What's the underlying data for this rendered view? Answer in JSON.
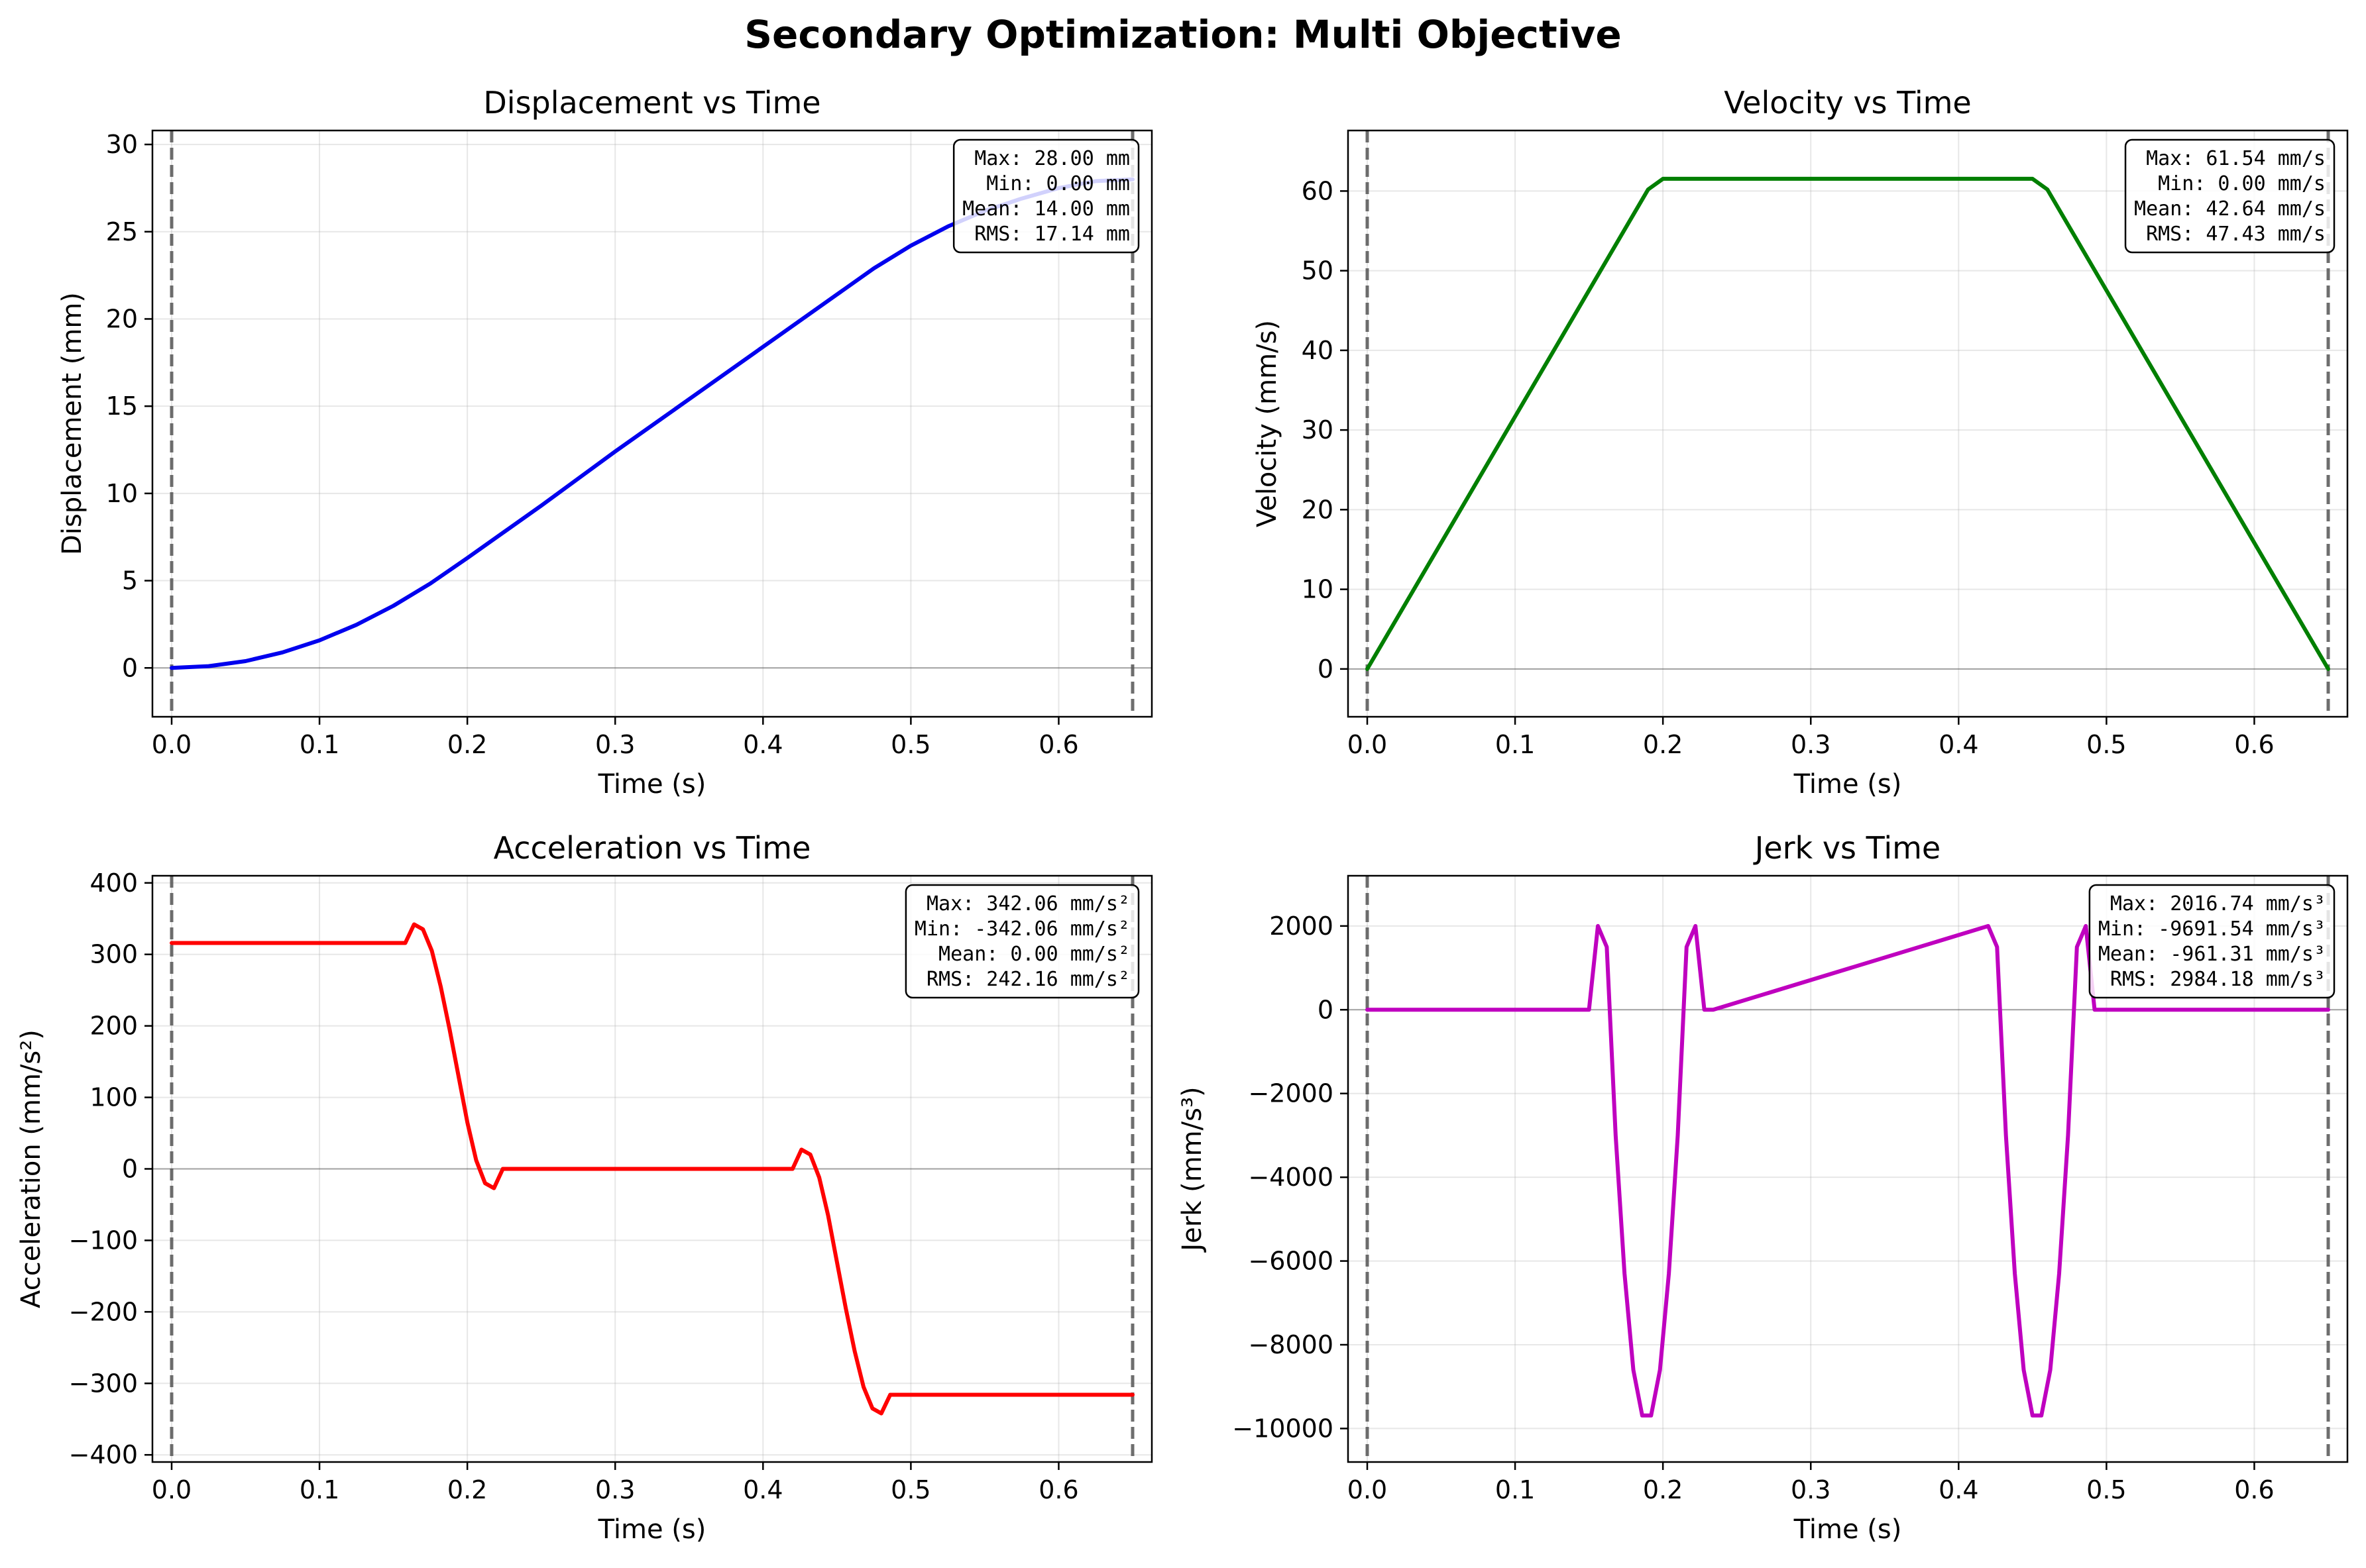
{
  "figure": {
    "title": "Secondary Optimization: Multi Objective"
  },
  "chart_data": [
    {
      "type": "line",
      "title": "Displacement vs Time",
      "xlabel": "Time (s)",
      "ylabel": "Displacement (mm)",
      "xlim": [
        -0.013,
        0.663
      ],
      "ylim": [
        -2.8,
        30.8
      ],
      "xticks": [
        0.0,
        0.1,
        0.2,
        0.3,
        0.4,
        0.5,
        0.6
      ],
      "xtick_labels": [
        "0.0",
        "0.1",
        "0.2",
        "0.3",
        "0.4",
        "0.5",
        "0.6"
      ],
      "yticks": [
        0,
        5,
        10,
        15,
        20,
        25,
        30
      ],
      "ytick_labels": [
        "0",
        "5",
        "10",
        "15",
        "20",
        "25",
        "30"
      ],
      "grid": true,
      "color": "#0000ee",
      "vlines": [
        0.0,
        0.65
      ],
      "stats": [
        "Max: 28.00 mm",
        "Min: 0.00 mm",
        "Mean: 14.00 mm",
        "RMS: 17.14 mm"
      ],
      "x": [
        0.0,
        0.025,
        0.05,
        0.075,
        0.1,
        0.125,
        0.15,
        0.175,
        0.2,
        0.25,
        0.3,
        0.35,
        0.4,
        0.45,
        0.475,
        0.5,
        0.525,
        0.55,
        0.575,
        0.6,
        0.625,
        0.65
      ],
      "y": [
        0.0,
        0.1,
        0.39,
        0.89,
        1.58,
        2.47,
        3.56,
        4.84,
        6.3,
        9.3,
        12.4,
        15.4,
        18.4,
        21.4,
        22.9,
        24.2,
        25.3,
        26.2,
        26.9,
        27.5,
        27.9,
        28.0
      ]
    },
    {
      "type": "line",
      "title": "Velocity vs Time",
      "xlabel": "Time (s)",
      "ylabel": "Velocity (mm/s)",
      "xlim": [
        -0.013,
        0.663
      ],
      "ylim": [
        -6,
        67.6
      ],
      "xticks": [
        0.0,
        0.1,
        0.2,
        0.3,
        0.4,
        0.5,
        0.6
      ],
      "xtick_labels": [
        "0.0",
        "0.1",
        "0.2",
        "0.3",
        "0.4",
        "0.5",
        "0.6"
      ],
      "yticks": [
        0,
        10,
        20,
        30,
        40,
        50,
        60
      ],
      "ytick_labels": [
        "0",
        "10",
        "20",
        "30",
        "40",
        "50",
        "60"
      ],
      "grid": true,
      "color": "#007f00",
      "vlines": [
        0.0,
        0.65
      ],
      "stats": [
        "Max: 61.54 mm/s",
        "Min: 0.00 mm/s",
        "Mean: 42.64 mm/s",
        "RMS: 47.43 mm/s"
      ],
      "x": [
        0.0,
        0.19,
        0.2,
        0.45,
        0.46,
        0.65
      ],
      "y": [
        0.0,
        60.2,
        61.54,
        61.54,
        60.2,
        0.0
      ]
    },
    {
      "type": "line",
      "title": "Acceleration vs Time",
      "xlabel": "Time (s)",
      "ylabel": "Acceleration (mm/s²)",
      "xlim": [
        -0.013,
        0.663
      ],
      "ylim": [
        -410,
        410
      ],
      "xticks": [
        0.0,
        0.1,
        0.2,
        0.3,
        0.4,
        0.5,
        0.6
      ],
      "xtick_labels": [
        "0.0",
        "0.1",
        "0.2",
        "0.3",
        "0.4",
        "0.5",
        "0.6"
      ],
      "yticks": [
        -400,
        -300,
        -200,
        -100,
        0,
        100,
        200,
        300,
        400
      ],
      "ytick_labels": [
        "−400",
        "−300",
        "−200",
        "−100",
        "0",
        "100",
        "200",
        "300",
        "400"
      ],
      "grid": true,
      "color": "#ff0000",
      "vlines": [
        0.0,
        0.65
      ],
      "stats": [
        "Max: 342.06 mm/s²",
        "Min: -342.06 mm/s²",
        "Mean: 0.00 mm/s²",
        "RMS: 242.16 mm/s²"
      ],
      "x": [
        0.0,
        0.158,
        0.164,
        0.17,
        0.176,
        0.182,
        0.188,
        0.194,
        0.2,
        0.206,
        0.212,
        0.218,
        0.224,
        0.23,
        0.42,
        0.426,
        0.432,
        0.438,
        0.444,
        0.45,
        0.456,
        0.462,
        0.468,
        0.474,
        0.48,
        0.486,
        0.492,
        0.65
      ],
      "y": [
        316,
        316,
        342,
        335,
        305,
        255,
        195,
        130,
        65,
        12,
        -20,
        -27,
        0,
        0,
        0,
        27,
        20,
        -12,
        -65,
        -130,
        -195,
        -255,
        -305,
        -335,
        -342,
        -316,
        -316,
        -316
      ]
    },
    {
      "type": "line",
      "title": "Jerk vs Time",
      "xlabel": "Time (s)",
      "ylabel": "Jerk (mm/s³)",
      "xlim": [
        -0.013,
        0.663
      ],
      "ylim": [
        -10800,
        3200
      ],
      "xticks": [
        0.0,
        0.1,
        0.2,
        0.3,
        0.4,
        0.5,
        0.6
      ],
      "xtick_labels": [
        "0.0",
        "0.1",
        "0.2",
        "0.3",
        "0.4",
        "0.5",
        "0.6"
      ],
      "yticks": [
        -10000,
        -8000,
        -6000,
        -4000,
        -2000,
        0,
        2000
      ],
      "ytick_labels": [
        "−10000",
        "−8000",
        "−6000",
        "−4000",
        "−2000",
        "0",
        "2000"
      ],
      "grid": true,
      "color": "#bf00bf",
      "vlines": [
        0.0,
        0.65
      ],
      "stats": [
        "Max: 2016.74 mm/s³",
        "Min: -9691.54 mm/s³",
        "Mean: -961.31 mm/s³",
        "RMS: 2984.18 mm/s³"
      ],
      "x": [
        0.0,
        0.15,
        0.156,
        0.162,
        0.168,
        0.174,
        0.18,
        0.186,
        0.192,
        0.198,
        0.204,
        0.21,
        0.216,
        0.222,
        0.228,
        0.234,
        0.42,
        0.426,
        0.432,
        0.438,
        0.444,
        0.45,
        0.456,
        0.462,
        0.468,
        0.474,
        0.48,
        0.486,
        0.492,
        0.65
      ],
      "y": [
        0,
        0,
        2000,
        1500,
        -3000,
        -6300,
        -8600,
        -9690,
        -9690,
        -8600,
        -6300,
        -3000,
        1500,
        2000,
        0,
        0,
        2000,
        1500,
        -3000,
        -6300,
        -8600,
        -9690,
        -9690,
        -8600,
        -6300,
        -3000,
        1500,
        2000,
        0,
        0
      ]
    }
  ]
}
